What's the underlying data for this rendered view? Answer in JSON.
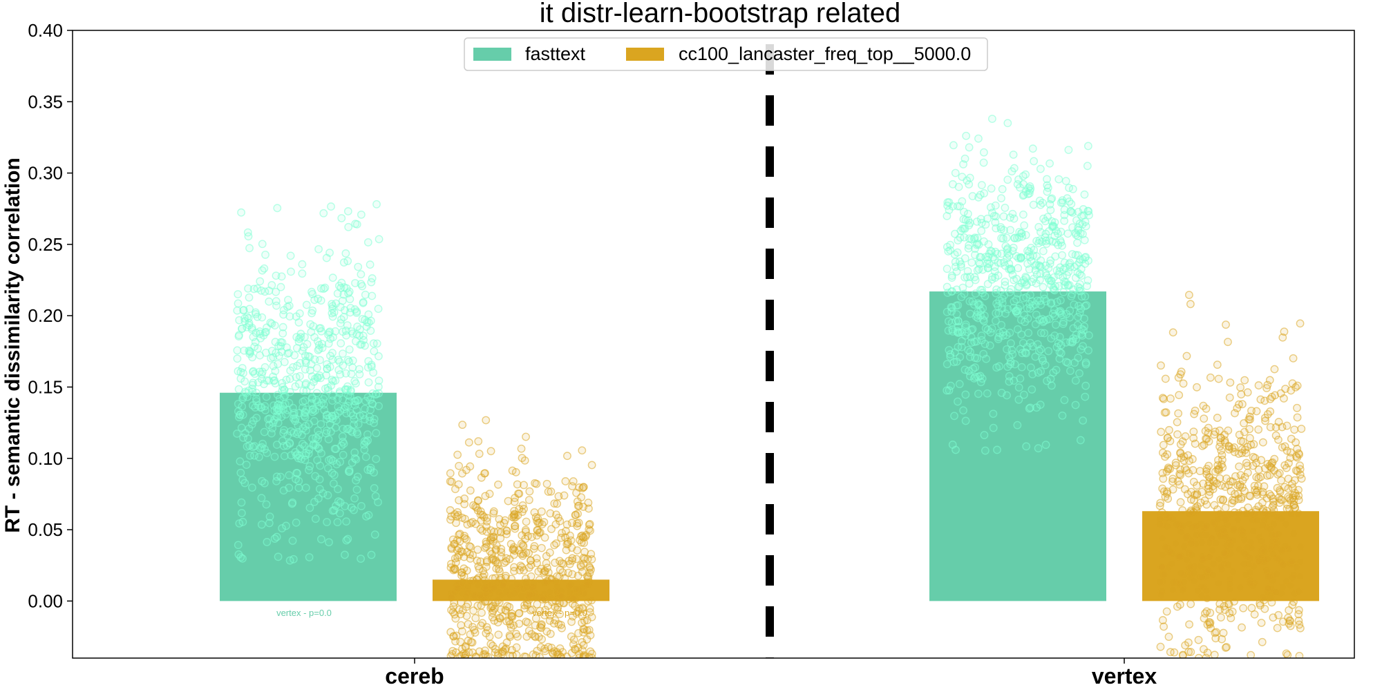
{
  "chart_data": {
    "type": "bar",
    "title": "it distr-learn-bootstrap related",
    "xlabel": "",
    "ylabel": "RT - semantic dissimilarity correlation",
    "ylim": [
      -0.04,
      0.4
    ],
    "yticks": [
      "0.00",
      "0.05",
      "0.10",
      "0.15",
      "0.20",
      "0.25",
      "0.30",
      "0.35",
      "0.40"
    ],
    "categories": [
      "cereb",
      "vertex"
    ],
    "legend_position": "top-center",
    "separator_style": "dashed black vertical line",
    "series": [
      {
        "name": "fasttext",
        "color": "#66cdaa",
        "values": [
          0.146,
          0.217
        ],
        "scatter_spread": [
          0.05,
          0.045
        ],
        "scatter_range": [
          [
            0.028,
            0.279
          ],
          [
            0.105,
            0.354
          ]
        ]
      },
      {
        "name": "cc100_lancaster_freq_top__5000.0",
        "color": "#daa520",
        "values": [
          0.015,
          0.063
        ],
        "scatter_spread": [
          0.04,
          0.05
        ],
        "scatter_range": [
          [
            -0.04,
            0.153
          ],
          [
            -0.04,
            0.223
          ]
        ]
      }
    ],
    "annotations": [
      {
        "text": "vertex - p=0.0",
        "category": "cereb",
        "series": 0,
        "color": "#66cdaa"
      },
      {
        "text": "vertex - p=0.0",
        "category": "cereb",
        "series": 1,
        "color": "#daa520"
      }
    ]
  }
}
